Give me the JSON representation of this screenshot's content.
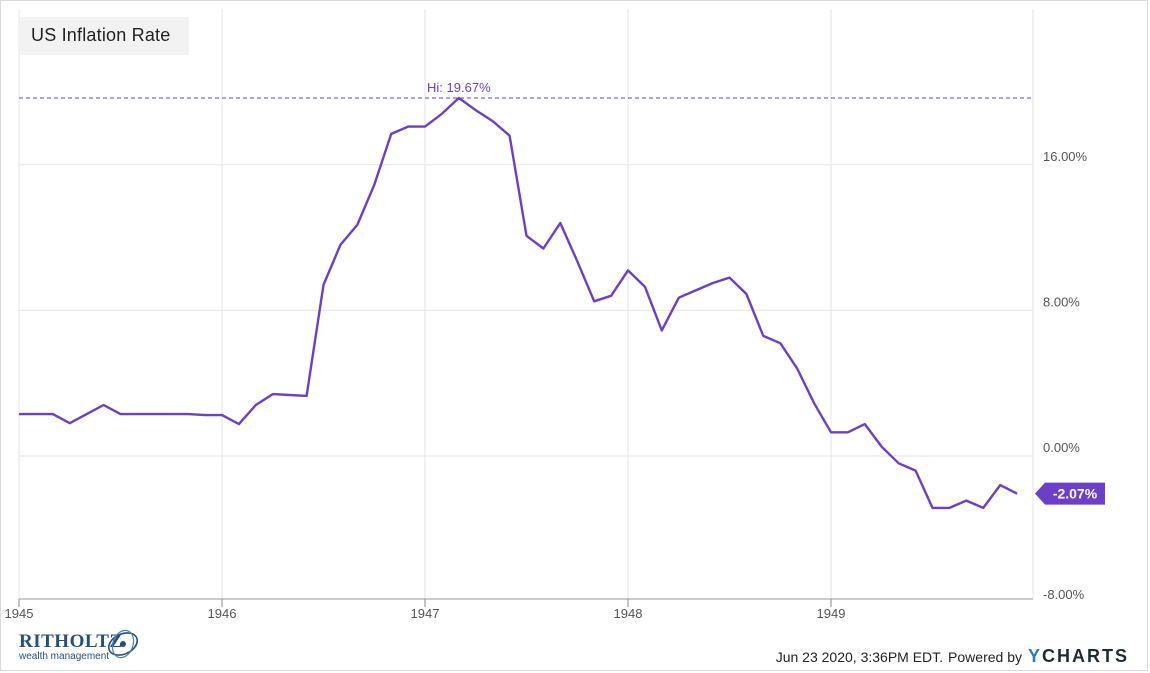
{
  "title": "US Inflation Rate",
  "footer": {
    "logo_word": "RITHOLTZ",
    "logo_sub": "wealth management",
    "timestamp": "Jun 23 2020, 3:36PM EDT.",
    "powered_by": "Powered by",
    "brand_y": "Y",
    "brand_rest": "CHARTS"
  },
  "colors": {
    "series": "#6b3fc9",
    "badge": "#6b3fc9",
    "grid": "#e6e6e6",
    "axis_text": "#555555"
  },
  "chart_data": {
    "type": "line",
    "title": "US Inflation Rate",
    "x_tick_labels": [
      "1945",
      "1946",
      "1947",
      "1948",
      "1949"
    ],
    "y_tick_labels": [
      "16.00%",
      "8.00%",
      "0.00%",
      "-8.00%"
    ],
    "y_ticks": [
      16,
      8,
      0,
      -8
    ],
    "ylim": [
      -8,
      20
    ],
    "xlim": [
      1945.0,
      1950.0
    ],
    "grid": true,
    "y_axis_side": "right",
    "high_annotation": {
      "label": "Hi: 19.67%",
      "value": 19.67
    },
    "last_value_badge": {
      "label": "-2.07%",
      "value": -2.07
    },
    "series": [
      {
        "points": [
          {
            "x": "Jan 1945",
            "y": 2.3
          },
          {
            "x": "Feb 1945",
            "y": 2.3
          },
          {
            "x": "Mar 1945",
            "y": 2.3
          },
          {
            "x": "Apr 1945",
            "y": 1.8
          },
          {
            "x": "May 1945",
            "y": 2.3
          },
          {
            "x": "Jun 1945",
            "y": 2.8
          },
          {
            "x": "Jul 1945",
            "y": 2.3
          },
          {
            "x": "Aug 1945",
            "y": 2.3
          },
          {
            "x": "Sep 1945",
            "y": 2.3
          },
          {
            "x": "Oct 1945",
            "y": 2.3
          },
          {
            "x": "Nov 1945",
            "y": 2.3
          },
          {
            "x": "Dec 1945",
            "y": 2.25
          },
          {
            "x": "Jan 1946",
            "y": 2.25
          },
          {
            "x": "Feb 1946",
            "y": 1.75
          },
          {
            "x": "Mar 1946",
            "y": 2.8
          },
          {
            "x": "Apr 1946",
            "y": 3.4
          },
          {
            "x": "May 1946",
            "y": 3.35
          },
          {
            "x": "Jun 1946",
            "y": 3.3
          },
          {
            "x": "Jul 1946",
            "y": 9.4
          },
          {
            "x": "Aug 1946",
            "y": 11.6
          },
          {
            "x": "Sep 1946",
            "y": 12.7
          },
          {
            "x": "Oct 1946",
            "y": 14.9
          },
          {
            "x": "Nov 1946",
            "y": 17.7
          },
          {
            "x": "Dec 1946",
            "y": 18.1
          },
          {
            "x": "Jan 1947",
            "y": 18.1
          },
          {
            "x": "Feb 1947",
            "y": 18.8
          },
          {
            "x": "Mar 1947",
            "y": 19.67
          },
          {
            "x": "Apr 1947",
            "y": 19.0
          },
          {
            "x": "May 1947",
            "y": 18.4
          },
          {
            "x": "Jun 1947",
            "y": 17.6
          },
          {
            "x": "Jul 1947",
            "y": 12.1
          },
          {
            "x": "Aug 1947",
            "y": 11.4
          },
          {
            "x": "Sep 1947",
            "y": 12.8
          },
          {
            "x": "Oct 1947",
            "y": 10.7
          },
          {
            "x": "Nov 1947",
            "y": 8.5
          },
          {
            "x": "Dec 1947",
            "y": 8.8
          },
          {
            "x": "Jan 1948",
            "y": 10.2
          },
          {
            "x": "Feb 1948",
            "y": 9.3
          },
          {
            "x": "Mar 1948",
            "y": 6.9
          },
          {
            "x": "Apr 1948",
            "y": 8.7
          },
          {
            "x": "May 1948",
            "y": 9.1
          },
          {
            "x": "Jun 1948",
            "y": 9.5
          },
          {
            "x": "Jul 1948",
            "y": 9.8
          },
          {
            "x": "Aug 1948",
            "y": 8.9
          },
          {
            "x": "Sep 1948",
            "y": 6.6
          },
          {
            "x": "Oct 1948",
            "y": 6.2
          },
          {
            "x": "Nov 1948",
            "y": 4.8
          },
          {
            "x": "Dec 1948",
            "y": 2.9
          },
          {
            "x": "Jan 1949",
            "y": 1.3
          },
          {
            "x": "Feb 1949",
            "y": 1.3
          },
          {
            "x": "Mar 1949",
            "y": 1.75
          },
          {
            "x": "Apr 1949",
            "y": 0.5
          },
          {
            "x": "May 1949",
            "y": -0.4
          },
          {
            "x": "Jun 1949",
            "y": -0.8
          },
          {
            "x": "Jul 1949",
            "y": -2.85
          },
          {
            "x": "Aug 1949",
            "y": -2.85
          },
          {
            "x": "Sep 1949",
            "y": -2.45
          },
          {
            "x": "Oct 1949",
            "y": -2.85
          },
          {
            "x": "Nov 1949",
            "y": -1.6
          },
          {
            "x": "Dec 1949",
            "y": -2.07
          }
        ]
      }
    ]
  }
}
